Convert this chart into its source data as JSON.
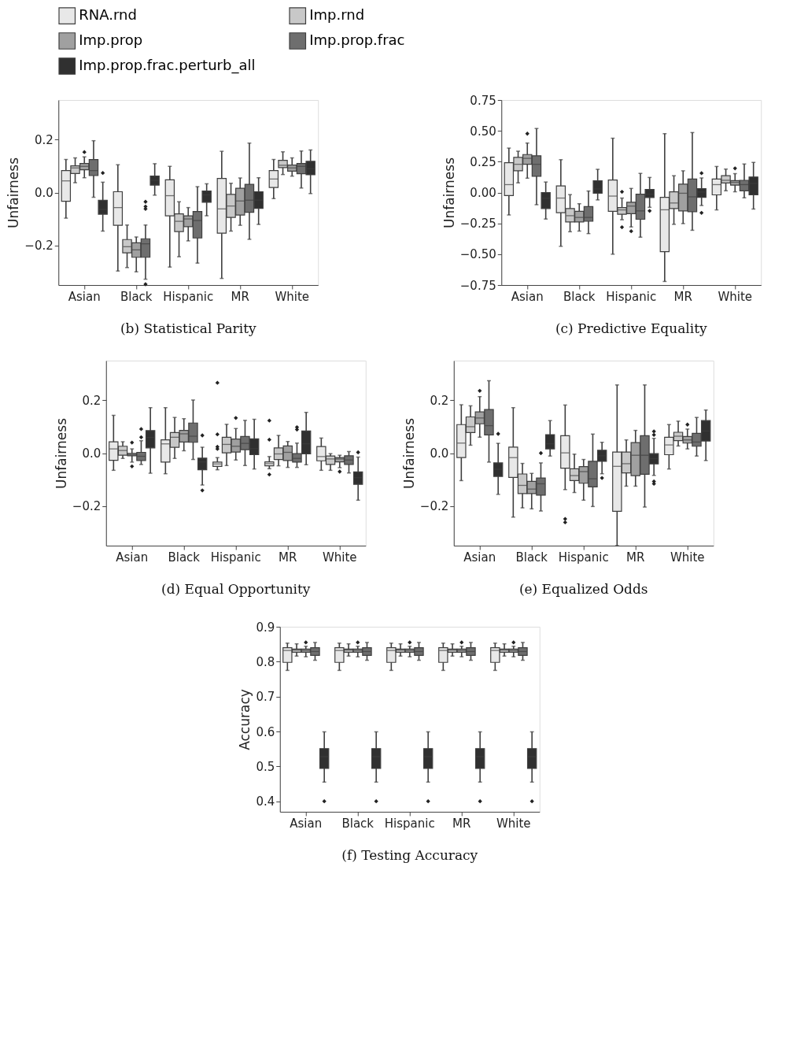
{
  "chart_data": [
    {
      "type": "box",
      "title": "(b) Statistical Parity",
      "ylabel": "Unfairness",
      "legend": "top",
      "grid": false,
      "categories": [
        "Asian",
        "Black",
        "Hispanic",
        "MR",
        "White"
      ],
      "ylim": [
        -0.35,
        0.35
      ],
      "yticks": [
        {
          "value": -0.2,
          "label": "−0.2"
        },
        {
          "value": 0,
          "label": "0.0"
        },
        {
          "value": 0.2,
          "label": "0.2"
        }
      ],
      "series": [
        {
          "name": "RNA.rnd",
          "color": "#e8e8e8",
          "boxes": [
            {
              "low": -0.097,
              "q1": -0.033,
              "median": 0.044,
              "q3": 0.083,
              "high": 0.125
            },
            {
              "low": -0.297,
              "q1": -0.124,
              "median": -0.057,
              "q3": 0.003,
              "high": 0.105
            },
            {
              "low": -0.282,
              "q1": -0.088,
              "median": -0.012,
              "q3": 0.048,
              "high": 0.099
            },
            {
              "low": -0.325,
              "q1": -0.154,
              "median": -0.062,
              "q3": 0.053,
              "high": 0.156
            },
            {
              "low": -0.023,
              "q1": 0.019,
              "median": 0.051,
              "q3": 0.083,
              "high": 0.125
            }
          ]
        },
        {
          "name": "Imp.rnd",
          "color": "#c8c8c8",
          "boxes": [
            {
              "low": 0.037,
              "q1": 0.072,
              "median": 0.093,
              "q3": 0.101,
              "high": 0.131
            },
            {
              "low": -0.284,
              "q1": -0.228,
              "median": -0.205,
              "q3": -0.178,
              "high": -0.123
            },
            {
              "low": -0.243,
              "q1": -0.148,
              "median": -0.109,
              "q3": -0.081,
              "high": -0.035
            },
            {
              "low": -0.146,
              "q1": -0.094,
              "median": -0.051,
              "q3": -0.007,
              "high": 0.035
            },
            {
              "low": 0.068,
              "q1": 0.094,
              "median": 0.103,
              "q3": 0.122,
              "high": 0.154
            }
          ]
        },
        {
          "name": "Imp.prop",
          "color": "#a0a0a0",
          "boxes": [
            {
              "low": 0.056,
              "q1": 0.086,
              "median": 0.099,
              "q3": 0.11,
              "high": 0.135,
              "outliers": [
                0.153
              ]
            },
            {
              "low": -0.3,
              "q1": -0.245,
              "median": -0.217,
              "q3": -0.19,
              "high": -0.168
            },
            {
              "low": -0.183,
              "q1": -0.129,
              "median": -0.1,
              "q3": -0.088,
              "high": -0.057
            },
            {
              "low": -0.124,
              "q1": -0.085,
              "median": -0.032,
              "q3": 0.016,
              "high": 0.055
            },
            {
              "low": 0.062,
              "q1": 0.081,
              "median": 0.093,
              "q3": 0.104,
              "high": 0.131
            }
          ]
        },
        {
          "name": "Imp.prop.frac",
          "color": "#6e6e6e",
          "boxes": [
            {
              "low": -0.018,
              "q1": 0.064,
              "median": 0.083,
              "q3": 0.125,
              "high": 0.196
            },
            {
              "low": -0.328,
              "q1": -0.245,
              "median": -0.194,
              "q3": -0.175,
              "high": -0.123,
              "outliers": [
                -0.035,
                -0.053,
                -0.062,
                -0.347
              ]
            },
            {
              "low": -0.267,
              "q1": -0.172,
              "median": -0.106,
              "q3": -0.072,
              "high": 0.022
            },
            {
              "low": -0.177,
              "q1": -0.075,
              "median": -0.029,
              "q3": 0.031,
              "high": 0.187
            },
            {
              "low": 0.017,
              "q1": 0.071,
              "median": 0.099,
              "q3": 0.11,
              "high": 0.157
            }
          ]
        },
        {
          "name": "Imp.prop.frac.perturb_all",
          "color": "#303030",
          "boxes": [
            {
              "low": -0.146,
              "q1": -0.082,
              "median": -0.064,
              "q3": -0.029,
              "high": 0.039,
              "outliers": [
                0.074
              ]
            },
            {
              "low": -0.01,
              "q1": 0.028,
              "median": 0.046,
              "q3": 0.062,
              "high": 0.109
            },
            {
              "low": -0.088,
              "q1": -0.037,
              "median": -0.009,
              "q3": 0.006,
              "high": 0.033
            },
            {
              "low": -0.121,
              "q1": -0.06,
              "median": -0.029,
              "q3": 0.003,
              "high": 0.056
            },
            {
              "low": -0.004,
              "q1": 0.067,
              "median": 0.09,
              "q3": 0.118,
              "high": 0.161
            }
          ]
        }
      ]
    },
    {
      "type": "box",
      "title": "(c) Predictive Equality",
      "ylabel": "Unfairness",
      "grid": false,
      "categories": [
        "Asian",
        "Black",
        "Hispanic",
        "MR",
        "White"
      ],
      "ylim": [
        -0.75,
        0.75
      ],
      "yticks": [
        {
          "value": -0.75,
          "label": "−0.75"
        },
        {
          "value": -0.5,
          "label": "−0.50"
        },
        {
          "value": -0.25,
          "label": "−0.25"
        },
        {
          "value": 0,
          "label": "0.00"
        },
        0.25,
        {
          "value": 0.5,
          "label": "0.50"
        },
        0.75
      ],
      "series": [
        {
          "color": "#e8e8e8",
          "boxes": [
            {
              "low": -0.182,
              "q1": -0.025,
              "median": 0.064,
              "q3": 0.242,
              "high": 0.36
            },
            {
              "low": -0.436,
              "q1": -0.163,
              "median": -0.045,
              "q3": 0.054,
              "high": 0.266
            },
            {
              "low": -0.5,
              "q1": -0.153,
              "median": -0.029,
              "q3": 0.101,
              "high": 0.44
            },
            {
              "low": -0.721,
              "q1": -0.479,
              "median": -0.14,
              "q3": -0.039,
              "high": 0.477
            },
            {
              "low": -0.141,
              "q1": -0.019,
              "median": 0.064,
              "q3": 0.109,
              "high": 0.211
            }
          ]
        },
        {
          "color": "#c8c8c8",
          "boxes": [
            {
              "low": 0.078,
              "q1": 0.176,
              "median": 0.229,
              "q3": 0.285,
              "high": 0.335
            },
            {
              "low": -0.318,
              "q1": -0.238,
              "median": -0.188,
              "q3": -0.13,
              "high": -0.017
            },
            {
              "low": -0.221,
              "q1": -0.176,
              "median": -0.141,
              "q3": -0.122,
              "high": -0.045,
              "outliers": [
                0.006,
                -0.281
              ]
            },
            {
              "low": -0.258,
              "q1": -0.13,
              "median": -0.085,
              "q3": 0.006,
              "high": 0.136
            },
            {
              "low": 0.014,
              "q1": 0.078,
              "median": 0.099,
              "q3": 0.136,
              "high": 0.19
            }
          ]
        },
        {
          "color": "#a0a0a0",
          "boxes": [
            {
              "low": 0.116,
              "q1": 0.229,
              "median": 0.277,
              "q3": 0.308,
              "high": 0.401,
              "outliers": [
                0.477
              ]
            },
            {
              "low": -0.312,
              "q1": -0.238,
              "median": -0.202,
              "q3": -0.153,
              "high": -0.091
            },
            {
              "low": -0.279,
              "q1": -0.171,
              "median": -0.11,
              "q3": -0.079,
              "high": 0.033,
              "outliers": [
                -0.314
              ]
            },
            {
              "low": -0.252,
              "q1": -0.149,
              "median": -0.006,
              "q3": 0.068,
              "high": 0.176
            },
            {
              "low": 0.006,
              "q1": 0.06,
              "median": 0.083,
              "q3": 0.097,
              "high": 0.153,
              "outliers": [
                0.196
              ]
            }
          ]
        },
        {
          "color": "#6e6e6e",
          "boxes": [
            {
              "low": -0.099,
              "q1": 0.132,
              "median": 0.229,
              "q3": 0.298,
              "high": 0.519
            },
            {
              "low": -0.333,
              "q1": -0.233,
              "median": -0.202,
              "q3": -0.114,
              "high": 0.012
            },
            {
              "low": -0.362,
              "q1": -0.217,
              "median": -0.149,
              "q3": -0.014,
              "high": 0.155
            },
            {
              "low": -0.306,
              "q1": -0.155,
              "median": -0.035,
              "q3": 0.109,
              "high": 0.486
            },
            {
              "low": -0.043,
              "q1": 0.014,
              "median": 0.064,
              "q3": 0.099,
              "high": 0.231
            }
          ]
        },
        {
          "color": "#303030",
          "boxes": [
            {
              "low": -0.215,
              "q1": -0.13,
              "median": -0.047,
              "q3": 0.0,
              "high": 0.085
            },
            {
              "low": -0.06,
              "q1": -0.006,
              "median": 0.029,
              "q3": 0.095,
              "high": 0.188
            },
            {
              "low": -0.12,
              "q1": -0.041,
              "median": -0.014,
              "q3": 0.025,
              "high": 0.122,
              "outliers": [
                -0.149
              ]
            },
            {
              "low": -0.105,
              "q1": -0.039,
              "median": 0.004,
              "q3": 0.031,
              "high": 0.118,
              "outliers": [
                0.157,
                -0.165
              ]
            },
            {
              "low": -0.134,
              "q1": -0.019,
              "median": 0.074,
              "q3": 0.126,
              "high": 0.244
            }
          ]
        }
      ]
    },
    {
      "type": "box",
      "title": "(d) Equal Opportunity",
      "ylabel": "Unfairness",
      "grid": false,
      "categories": [
        "Asian",
        "Black",
        "Hispanic",
        "MR",
        "White"
      ],
      "ylim": [
        -0.35,
        0.35
      ],
      "yticks": [
        {
          "value": -0.2,
          "label": "−0.2"
        },
        {
          "value": 0,
          "label": "0.0"
        },
        {
          "value": 0.2,
          "label": "0.2"
        }
      ],
      "series": [
        {
          "color": "#e8e8e8",
          "boxes": [
            {
              "low": -0.065,
              "q1": -0.027,
              "median": 0.016,
              "q3": 0.043,
              "high": 0.143
            },
            {
              "low": -0.078,
              "q1": -0.034,
              "median": 0.035,
              "q3": 0.05,
              "high": 0.172
            },
            {
              "low": -0.063,
              "q1": -0.05,
              "median": -0.041,
              "q3": -0.034,
              "high": -0.017,
              "outliers": [
                0.266,
                0.071,
                0.024,
                0.016
              ]
            },
            {
              "low": -0.059,
              "q1": -0.048,
              "median": -0.04,
              "q3": -0.033,
              "high": -0.013,
              "outliers": [
                0.123,
                0.051,
                -0.081
              ]
            },
            {
              "low": -0.065,
              "q1": -0.029,
              "median": -0.013,
              "q3": 0.025,
              "high": 0.057
            }
          ]
        },
        {
          "color": "#c8c8c8",
          "boxes": [
            {
              "low": -0.02,
              "q1": -0.008,
              "median": 0.01,
              "q3": 0.026,
              "high": 0.043
            },
            {
              "low": -0.02,
              "q1": 0.022,
              "median": 0.06,
              "q3": 0.078,
              "high": 0.135
            },
            {
              "low": -0.047,
              "q1": 0.001,
              "median": 0.033,
              "q3": 0.06,
              "high": 0.109
            },
            {
              "low": -0.048,
              "q1": -0.024,
              "median": -0.003,
              "q3": 0.02,
              "high": 0.067
            },
            {
              "low": -0.065,
              "q1": -0.043,
              "median": -0.022,
              "q3": -0.011,
              "high": -0.002
            }
          ]
        },
        {
          "color": "#a0a0a0",
          "boxes": [
            {
              "low": -0.034,
              "q1": -0.01,
              "median": -0.006,
              "q3": -0.001,
              "high": 0.016,
              "outliers": [
                0.04,
                -0.05
              ]
            },
            {
              "low": 0.009,
              "q1": 0.042,
              "median": 0.073,
              "q3": 0.086,
              "high": 0.13
            },
            {
              "low": -0.026,
              "q1": 0.004,
              "median": 0.026,
              "q3": 0.053,
              "high": 0.093,
              "outliers": [
                0.133
              ]
            },
            {
              "low": -0.054,
              "q1": -0.028,
              "median": 0.003,
              "q3": 0.027,
              "high": 0.044
            },
            {
              "low": -0.055,
              "q1": -0.033,
              "median": -0.022,
              "q3": -0.017,
              "high": -0.008,
              "outliers": [
                -0.07
              ]
            }
          ]
        },
        {
          "color": "#6e6e6e",
          "boxes": [
            {
              "low": -0.043,
              "q1": -0.028,
              "median": -0.012,
              "q3": 0.003,
              "high": 0.047,
              "outliers": [
                0.06,
                0.091
              ]
            },
            {
              "low": -0.024,
              "q1": 0.041,
              "median": 0.064,
              "q3": 0.114,
              "high": 0.201
            },
            {
              "low": -0.047,
              "q1": 0.013,
              "median": 0.037,
              "q3": 0.063,
              "high": 0.124
            },
            {
              "low": -0.054,
              "q1": -0.034,
              "median": -0.02,
              "q3": -0.002,
              "high": 0.038,
              "outliers": [
                0.098,
                0.089
              ]
            },
            {
              "low": -0.075,
              "q1": -0.043,
              "median": -0.026,
              "q3": -0.01,
              "high": 0.006
            }
          ]
        },
        {
          "color": "#303030",
          "boxes": [
            {
              "low": -0.076,
              "q1": 0.02,
              "median": 0.059,
              "q3": 0.085,
              "high": 0.172
            },
            {
              "low": -0.121,
              "q1": -0.063,
              "median": -0.033,
              "q3": -0.019,
              "high": 0.022,
              "outliers": [
                0.067,
                -0.141
              ]
            },
            {
              "low": -0.06,
              "q1": -0.006,
              "median": 0.017,
              "q3": 0.054,
              "high": 0.128
            },
            {
              "low": -0.044,
              "q1": -0.003,
              "median": 0.035,
              "q3": 0.084,
              "high": 0.154
            },
            {
              "low": -0.178,
              "q1": -0.118,
              "median": -0.093,
              "q3": -0.071,
              "high": -0.015,
              "outliers": [
                0.003
              ]
            }
          ]
        }
      ]
    },
    {
      "type": "box",
      "title": "(e) Equalized Odds",
      "ylabel": "Unfairness",
      "grid": false,
      "categories": [
        "Asian",
        "Black",
        "Hispanic",
        "MR",
        "White"
      ],
      "ylim": [
        -0.35,
        0.35
      ],
      "yticks": [
        {
          "value": -0.2,
          "label": "−0.2"
        },
        {
          "value": 0,
          "label": "0.0"
        },
        {
          "value": 0.2,
          "label": "0.2"
        }
      ],
      "series": [
        {
          "color": "#e8e8e8",
          "boxes": [
            {
              "low": -0.104,
              "q1": -0.017,
              "median": 0.038,
              "q3": 0.108,
              "high": 0.183
            },
            {
              "low": -0.242,
              "q1": -0.092,
              "median": -0.017,
              "q3": 0.023,
              "high": 0.172
            },
            {
              "low": -0.138,
              "q1": -0.057,
              "median": 0.001,
              "q3": 0.066,
              "high": 0.182,
              "outliers": [
                -0.249,
                -0.262
              ]
            },
            {
              "low": -0.35,
              "q1": -0.22,
              "median": -0.05,
              "q3": 0.004,
              "high": 0.258
            },
            {
              "low": -0.06,
              "q1": -0.006,
              "median": 0.031,
              "q3": 0.06,
              "high": 0.108
            }
          ]
        },
        {
          "color": "#c8c8c8",
          "boxes": [
            {
              "low": 0.03,
              "q1": 0.078,
              "median": 0.1,
              "q3": 0.137,
              "high": 0.179
            },
            {
              "low": -0.207,
              "q1": -0.153,
              "median": -0.122,
              "q3": -0.079,
              "high": -0.039
            },
            {
              "low": -0.149,
              "q1": -0.104,
              "median": -0.085,
              "q3": -0.059,
              "high": -0.004
            },
            {
              "low": -0.125,
              "q1": -0.075,
              "median": -0.04,
              "q3": 0.004,
              "high": 0.05
            },
            {
              "low": 0.027,
              "q1": 0.047,
              "median": 0.064,
              "q3": 0.079,
              "high": 0.121
            }
          ]
        },
        {
          "color": "#a0a0a0",
          "boxes": [
            {
              "low": 0.06,
              "q1": 0.111,
              "median": 0.133,
              "q3": 0.156,
              "high": 0.214,
              "outliers": [
                0.236
              ]
            },
            {
              "low": -0.211,
              "q1": -0.153,
              "median": -0.136,
              "q3": -0.107,
              "high": -0.077
            },
            {
              "low": -0.178,
              "q1": -0.114,
              "median": -0.07,
              "q3": -0.051,
              "high": -0.024
            },
            {
              "low": -0.125,
              "q1": -0.085,
              "median": -0.008,
              "q3": 0.04,
              "high": 0.086
            },
            {
              "low": 0.016,
              "q1": 0.038,
              "median": 0.05,
              "q3": 0.063,
              "high": 0.091,
              "outliers": [
                0.108
              ]
            }
          ]
        },
        {
          "color": "#6e6e6e",
          "boxes": [
            {
              "low": -0.034,
              "q1": 0.069,
              "median": 0.104,
              "q3": 0.165,
              "high": 0.274
            },
            {
              "low": -0.219,
              "q1": -0.159,
              "median": -0.116,
              "q3": -0.094,
              "high": -0.037,
              "outliers": [
                0.0
              ]
            },
            {
              "low": -0.202,
              "q1": -0.128,
              "median": -0.097,
              "q3": -0.031,
              "high": 0.072
            },
            {
              "low": -0.204,
              "q1": -0.08,
              "median": -0.008,
              "q3": 0.066,
              "high": 0.258
            },
            {
              "low": -0.011,
              "q1": 0.026,
              "median": 0.042,
              "q3": 0.075,
              "high": 0.135
            }
          ]
        },
        {
          "color": "#303030",
          "boxes": [
            {
              "low": -0.156,
              "q1": -0.088,
              "median": -0.061,
              "q3": -0.037,
              "high": 0.037,
              "outliers": [
                0.073
              ]
            },
            {
              "low": -0.011,
              "q1": 0.016,
              "median": 0.035,
              "q3": 0.07,
              "high": 0.123
            },
            {
              "low": -0.078,
              "q1": -0.031,
              "median": -0.01,
              "q3": 0.011,
              "high": 0.041,
              "outliers": [
                -0.094
              ]
            },
            {
              "low": -0.084,
              "q1": -0.041,
              "median": -0.021,
              "q3": -0.002,
              "high": 0.056,
              "outliers": [
                0.082,
                0.069,
                -0.107,
                -0.116
              ]
            },
            {
              "low": -0.028,
              "q1": 0.046,
              "median": 0.084,
              "q3": 0.123,
              "high": 0.163
            }
          ]
        }
      ]
    },
    {
      "type": "box",
      "title": "(f) Testing Accuracy",
      "ylabel": "Accuracy",
      "grid": false,
      "categories": [
        "Asian",
        "Black",
        "Hispanic",
        "MR",
        "White"
      ],
      "ylim": [
        0.37,
        0.9
      ],
      "yticks": [
        0.4,
        0.5,
        0.6,
        0.7,
        0.8,
        0.9
      ],
      "series": [
        {
          "color": "#e8e8e8",
          "boxes": [
            {
              "low": 0.775,
              "q1": 0.798,
              "median": 0.832,
              "q3": 0.84,
              "high": 0.853
            },
            {
              "low": 0.775,
              "q1": 0.798,
              "median": 0.832,
              "q3": 0.84,
              "high": 0.853
            },
            {
              "low": 0.775,
              "q1": 0.798,
              "median": 0.832,
              "q3": 0.84,
              "high": 0.853
            },
            {
              "low": 0.775,
              "q1": 0.798,
              "median": 0.832,
              "q3": 0.84,
              "high": 0.853
            },
            {
              "low": 0.775,
              "q1": 0.798,
              "median": 0.832,
              "q3": 0.84,
              "high": 0.853
            }
          ]
        },
        {
          "color": "#c8c8c8",
          "boxes": [
            {
              "low": 0.816,
              "q1": 0.827,
              "median": 0.833,
              "q3": 0.836,
              "high": 0.851
            },
            {
              "low": 0.816,
              "q1": 0.827,
              "median": 0.833,
              "q3": 0.836,
              "high": 0.851
            },
            {
              "low": 0.816,
              "q1": 0.827,
              "median": 0.833,
              "q3": 0.836,
              "high": 0.851
            },
            {
              "low": 0.816,
              "q1": 0.827,
              "median": 0.833,
              "q3": 0.836,
              "high": 0.851
            },
            {
              "low": 0.816,
              "q1": 0.827,
              "median": 0.833,
              "q3": 0.836,
              "high": 0.851
            }
          ]
        },
        {
          "color": "#a0a0a0",
          "boxes": [
            {
              "low": 0.814,
              "q1": 0.827,
              "median": 0.832,
              "q3": 0.836,
              "high": 0.844,
              "outliers": [
                0.855
              ]
            },
            {
              "low": 0.814,
              "q1": 0.827,
              "median": 0.832,
              "q3": 0.836,
              "high": 0.844,
              "outliers": [
                0.855
              ]
            },
            {
              "low": 0.814,
              "q1": 0.827,
              "median": 0.832,
              "q3": 0.836,
              "high": 0.844,
              "outliers": [
                0.855
              ]
            },
            {
              "low": 0.814,
              "q1": 0.827,
              "median": 0.832,
              "q3": 0.836,
              "high": 0.844,
              "outliers": [
                0.855
              ]
            },
            {
              "low": 0.814,
              "q1": 0.827,
              "median": 0.832,
              "q3": 0.836,
              "high": 0.844,
              "outliers": [
                0.855
              ]
            }
          ]
        },
        {
          "color": "#6e6e6e",
          "boxes": [
            {
              "low": 0.804,
              "q1": 0.818,
              "median": 0.829,
              "q3": 0.84,
              "high": 0.855
            },
            {
              "low": 0.804,
              "q1": 0.818,
              "median": 0.829,
              "q3": 0.84,
              "high": 0.855
            },
            {
              "low": 0.804,
              "q1": 0.818,
              "median": 0.829,
              "q3": 0.84,
              "high": 0.855
            },
            {
              "low": 0.804,
              "q1": 0.818,
              "median": 0.829,
              "q3": 0.84,
              "high": 0.855
            },
            {
              "low": 0.804,
              "q1": 0.818,
              "median": 0.829,
              "q3": 0.84,
              "high": 0.855
            }
          ]
        },
        {
          "color": "#303030",
          "boxes": [
            {
              "low": 0.455,
              "q1": 0.494,
              "median": 0.528,
              "q3": 0.551,
              "high": 0.599,
              "outliers": [
                0.4
              ]
            },
            {
              "low": 0.455,
              "q1": 0.494,
              "median": 0.528,
              "q3": 0.551,
              "high": 0.599,
              "outliers": [
                0.4
              ]
            },
            {
              "low": 0.455,
              "q1": 0.494,
              "median": 0.528,
              "q3": 0.551,
              "high": 0.599,
              "outliers": [
                0.4
              ]
            },
            {
              "low": 0.455,
              "q1": 0.494,
              "median": 0.528,
              "q3": 0.551,
              "high": 0.599,
              "outliers": [
                0.4
              ]
            },
            {
              "low": 0.455,
              "q1": 0.494,
              "median": 0.528,
              "q3": 0.551,
              "high": 0.599,
              "outliers": [
                0.4
              ]
            }
          ]
        }
      ]
    }
  ]
}
